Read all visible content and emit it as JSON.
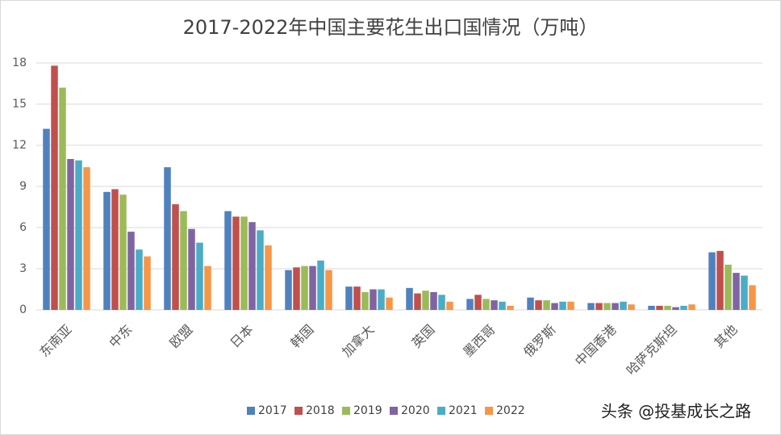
{
  "chart_data": {
    "type": "bar",
    "title": "2017-2022年中国主要花生出口国情况（万吨）",
    "categories": [
      "东南亚",
      "中东",
      "欧盟",
      "日本",
      "韩国",
      "加拿大",
      "英国",
      "墨西哥",
      "俄罗斯",
      "中国香港",
      "哈萨克斯坦",
      "其他"
    ],
    "series": [
      {
        "name": "2017",
        "color": "#4f81bd",
        "values": [
          13.2,
          8.6,
          10.4,
          7.2,
          2.9,
          1.7,
          1.6,
          0.8,
          0.9,
          0.5,
          0.3,
          4.2
        ]
      },
      {
        "name": "2018",
        "color": "#c0504d",
        "values": [
          17.8,
          8.8,
          7.7,
          6.8,
          3.1,
          1.7,
          1.2,
          1.1,
          0.7,
          0.5,
          0.3,
          4.3
        ]
      },
      {
        "name": "2019",
        "color": "#9bbb59",
        "values": [
          16.2,
          8.4,
          7.2,
          6.8,
          3.2,
          1.3,
          1.4,
          0.8,
          0.7,
          0.5,
          0.3,
          3.3
        ]
      },
      {
        "name": "2020",
        "color": "#8064a2",
        "values": [
          11.0,
          5.7,
          5.9,
          6.4,
          3.2,
          1.5,
          1.3,
          0.7,
          0.5,
          0.5,
          0.2,
          2.7
        ]
      },
      {
        "name": "2021",
        "color": "#4bacc6",
        "values": [
          10.9,
          4.4,
          4.9,
          5.8,
          3.6,
          1.5,
          1.1,
          0.6,
          0.6,
          0.6,
          0.3,
          2.5
        ]
      },
      {
        "name": "2022",
        "color": "#f79646",
        "values": [
          10.4,
          3.9,
          3.2,
          4.7,
          2.9,
          0.9,
          0.6,
          0.3,
          0.6,
          0.4,
          0.4,
          1.8
        ]
      }
    ],
    "ylim": [
      0,
      18
    ],
    "yticks": [
      0,
      3,
      6,
      9,
      12,
      15,
      18
    ],
    "grid": true,
    "legend": "bottom",
    "watermark": "头条 @投基成长之路"
  }
}
